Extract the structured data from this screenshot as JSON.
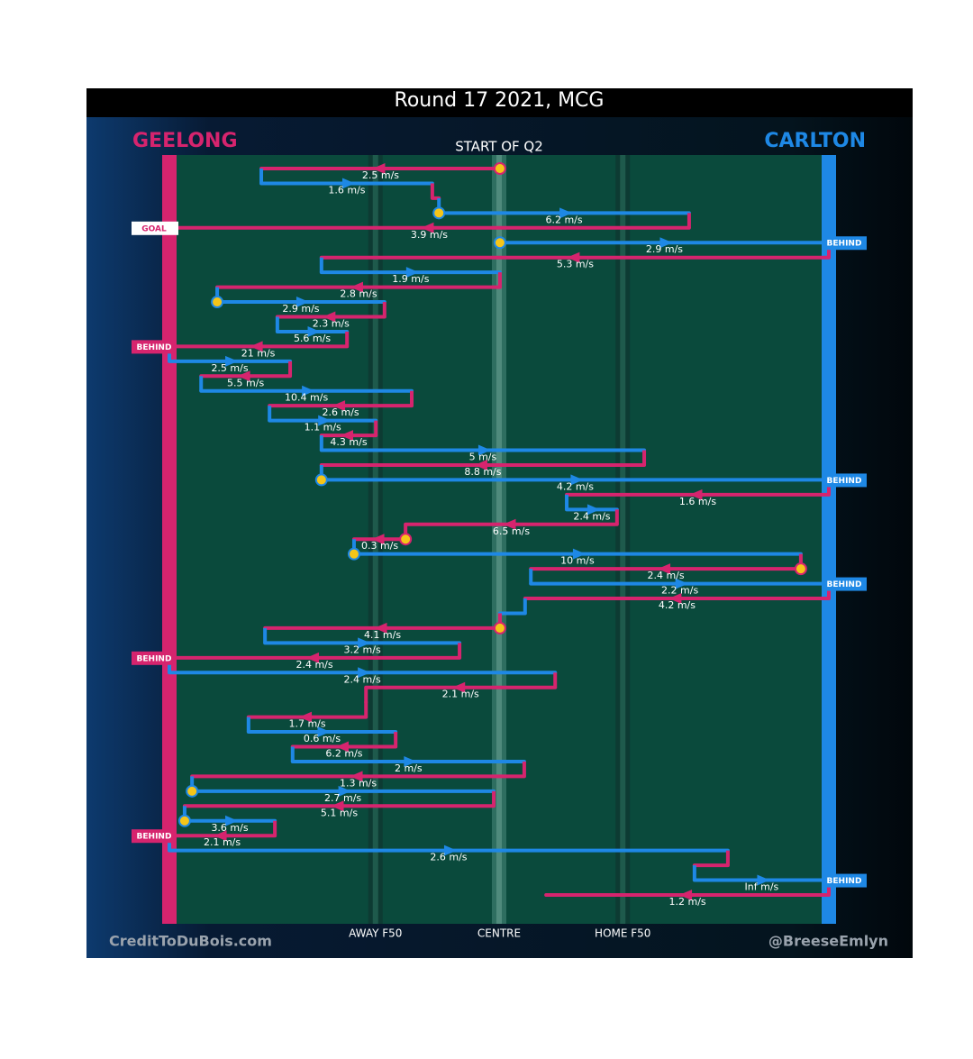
{
  "chart_data": {
    "type": "chain",
    "title": "Round 17 2021, MCG",
    "subtitle": "START OF Q2",
    "teams": [
      {
        "name": "GEELONG",
        "color": "#d6246e"
      },
      {
        "name": "CARLTON",
        "color": "#1e88e5"
      }
    ],
    "xlim": [
      0,
      160
    ],
    "xticks": [
      {
        "value": 50,
        "label": "AWAY F50"
      },
      {
        "value": 80,
        "label": "CENTRE"
      },
      {
        "value": 110,
        "label": "HOME F50"
      }
    ],
    "credits": [
      "CreditToDuBois.com",
      "@BreeseEmlyn"
    ],
    "segments": [
      {
        "team": 0,
        "from": 80.2,
        "to": 22.3,
        "label": "2.5 m/s",
        "stoppage": true
      },
      {
        "team": 1,
        "from": 22.3,
        "to": 63.8,
        "label": "1.6 m/s"
      },
      {
        "team": 0,
        "from": 63.8,
        "to": 65.4
      },
      {
        "team": 1,
        "from": 65.4,
        "to": 126.1,
        "label": "6.2 m/s",
        "stoppage": true
      },
      {
        "team": 0,
        "from": 126.1,
        "to": 0,
        "label": "3.9 m/s",
        "outcome": "GOAL"
      },
      {
        "team": 1,
        "from": 80.2,
        "to": 160,
        "label": "2.9 m/s",
        "stoppage": true,
        "outcome": "BEHIND"
      },
      {
        "team": 0,
        "from": 160,
        "to": 36.9,
        "label": "5.3 m/s"
      },
      {
        "team": 1,
        "from": 36.9,
        "to": 80.2,
        "label": "1.9 m/s"
      },
      {
        "team": 0,
        "from": 80.2,
        "to": 11.6,
        "label": "2.8 m/s"
      },
      {
        "team": 1,
        "from": 11.6,
        "to": 52.2,
        "label": "2.9 m/s",
        "stoppage": true
      },
      {
        "team": 0,
        "from": 52.2,
        "to": 26.2,
        "label": "2.3 m/s"
      },
      {
        "team": 1,
        "from": 26.2,
        "to": 43.1,
        "label": "5.6 m/s"
      },
      {
        "team": 0,
        "from": 43.1,
        "to": 0,
        "label": "21 m/s",
        "outcome": "BEHIND"
      },
      {
        "team": 1,
        "from": 0,
        "to": 29.3,
        "label": "2.5 m/s"
      },
      {
        "team": 0,
        "from": 29.3,
        "to": 7.7,
        "label": "5.5 m/s"
      },
      {
        "team": 1,
        "from": 7.7,
        "to": 58.8,
        "label": "10.4 m/s"
      },
      {
        "team": 0,
        "from": 58.8,
        "to": 24.3,
        "label": "2.6 m/s"
      },
      {
        "team": 1,
        "from": 24.3,
        "to": 50.1,
        "label": "1.1 m/s"
      },
      {
        "team": 0,
        "from": 50.1,
        "to": 36.9,
        "label": "4.3 m/s"
      },
      {
        "team": 1,
        "from": 36.9,
        "to": 115.2,
        "label": "5 m/s"
      },
      {
        "team": 0,
        "from": 115.2,
        "to": 36.9,
        "label": "8.8 m/s"
      },
      {
        "team": 1,
        "from": 36.9,
        "to": 160,
        "label": "4.2 m/s",
        "stoppage": true,
        "outcome": "BEHIND"
      },
      {
        "team": 0,
        "from": 160,
        "to": 96.4,
        "label": "1.6 m/s"
      },
      {
        "team": 1,
        "from": 96.4,
        "to": 108.6,
        "label": "2.4 m/s"
      },
      {
        "team": 0,
        "from": 108.6,
        "to": 57.3,
        "label": "6.5 m/s"
      },
      {
        "team": 0,
        "from": 57.3,
        "to": 44.8,
        "label": "0.3 m/s",
        "stoppage": true
      },
      {
        "team": 1,
        "from": 44.8,
        "to": 153.2,
        "label": "10 m/s",
        "stoppage": true
      },
      {
        "team": 0,
        "from": 153.2,
        "to": 87.7,
        "label": "2.4 m/s",
        "stoppage": true
      },
      {
        "team": 1,
        "from": 87.7,
        "to": 160,
        "label": "2.2 m/s",
        "outcome": "BEHIND"
      },
      {
        "team": 0,
        "from": 160,
        "to": 86.3,
        "label": "4.2 m/s"
      },
      {
        "team": 1,
        "from": 86.3,
        "to": 80.2
      },
      {
        "team": 0,
        "from": 80.2,
        "to": 23.2,
        "label": "4.1 m/s",
        "stoppage": true
      },
      {
        "team": 1,
        "from": 23.2,
        "to": 70.4,
        "label": "3.2 m/s"
      },
      {
        "team": 0,
        "from": 70.4,
        "to": 0,
        "label": "2.4 m/s",
        "outcome": "BEHIND"
      },
      {
        "team": 1,
        "from": 0,
        "to": 93.6,
        "label": "2.4 m/s"
      },
      {
        "team": 0,
        "from": 93.6,
        "to": 47.7,
        "label": "2.1 m/s"
      },
      {
        "team": 0,
        "from": 47.7,
        "to": 47.7
      },
      {
        "team": 0,
        "from": 47.7,
        "to": 19.2,
        "label": "1.7 m/s"
      },
      {
        "team": 1,
        "from": 19.2,
        "to": 54.9,
        "label": "0.6 m/s"
      },
      {
        "team": 0,
        "from": 54.9,
        "to": 29.9,
        "label": "6.2 m/s"
      },
      {
        "team": 1,
        "from": 29.9,
        "to": 86.1,
        "label": "2 m/s"
      },
      {
        "team": 0,
        "from": 86.1,
        "to": 5.5,
        "label": "1.3 m/s"
      },
      {
        "team": 1,
        "from": 5.5,
        "to": 78.7,
        "label": "2.7 m/s",
        "stoppage": true
      },
      {
        "team": 0,
        "from": 78.7,
        "to": 3.7,
        "label": "5.1 m/s"
      },
      {
        "team": 1,
        "from": 3.7,
        "to": 25.6,
        "label": "3.6 m/s",
        "stoppage": true
      },
      {
        "team": 0,
        "from": 25.6,
        "to": 0,
        "label": "2.1 m/s",
        "outcome": "BEHIND"
      },
      {
        "team": 1,
        "from": 0,
        "to": 135.5,
        "label": "2.6 m/s"
      },
      {
        "team": 0,
        "from": 135.5,
        "to": 127.4
      },
      {
        "team": 1,
        "from": 127.4,
        "to": 160,
        "label": "Inf m/s",
        "outcome": "BEHIND"
      },
      {
        "team": 0,
        "from": 160,
        "to": 91.4,
        "label": "1.2 m/s"
      }
    ]
  }
}
